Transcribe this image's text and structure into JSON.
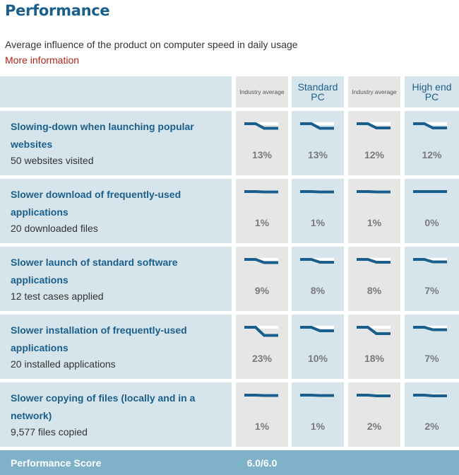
{
  "page": {
    "title": "Performance",
    "subtitle": "Average influence of the product on computer speed in daily usage",
    "more_link": "More information"
  },
  "columns": [
    {
      "label": "Industry average",
      "style": "small"
    },
    {
      "label": "Standard PC",
      "style": "big"
    },
    {
      "label": "Industry average",
      "style": "small"
    },
    {
      "label": "High end PC",
      "style": "big"
    }
  ],
  "rows": [
    {
      "title": "Slowing-down when launching popular websites",
      "subtitle": "50 websites visited",
      "values": [
        "13%",
        "13%",
        "12%",
        "12%"
      ],
      "fractions": [
        0.13,
        0.13,
        0.12,
        0.12
      ]
    },
    {
      "title": "Slower download of frequently-used applications",
      "subtitle": "20 downloaded files",
      "values": [
        "1%",
        "1%",
        "1%",
        "0%"
      ],
      "fractions": [
        0.01,
        0.01,
        0.01,
        0.0
      ]
    },
    {
      "title": "Slower launch of standard software applications",
      "subtitle": "12 test cases applied",
      "values": [
        "9%",
        "8%",
        "8%",
        "7%"
      ],
      "fractions": [
        0.09,
        0.08,
        0.08,
        0.07
      ]
    },
    {
      "title": "Slower installation of frequently-used applications",
      "subtitle": "20 installed applications",
      "values": [
        "23%",
        "10%",
        "18%",
        "7%"
      ],
      "fractions": [
        0.23,
        0.1,
        0.18,
        0.07
      ]
    },
    {
      "title": "Slower copying of files (locally and in a network)",
      "subtitle": "9,577 files copied",
      "values": [
        "1%",
        "1%",
        "2%",
        "2%"
      ],
      "fractions": [
        0.01,
        0.01,
        0.02,
        0.02
      ]
    }
  ],
  "footer": {
    "label": "Performance Score",
    "score": "6.0/6.0"
  },
  "colors": {
    "line": "#1a5f8c",
    "title": "#1a5f8c",
    "link": "#b02418",
    "footer": "#7fb1c9"
  }
}
